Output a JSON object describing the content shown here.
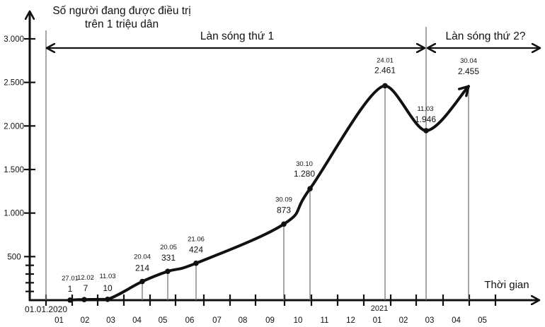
{
  "chart_data": {
    "type": "line",
    "title": "",
    "ylabel": "Số người đang được điều trị trên 1 triệu dân",
    "ylabel_lines": [
      "Số người đang được điều trị",
      "trên 1 triệu dân"
    ],
    "xlabel": "Thời gian",
    "ylim": [
      0,
      3000
    ],
    "yticks": [
      500,
      1000,
      1500,
      2000,
      2500,
      3000
    ],
    "ytick_labels": [
      "500",
      "1.000",
      "1.500",
      "2.000",
      "2.500",
      "3.000"
    ],
    "x_start_label": "01.01.2020",
    "x_year_marker": "2021",
    "x_month_labels": [
      "01",
      "02",
      "03",
      "04",
      "05",
      "06",
      "07",
      "08",
      "09",
      "10",
      "11",
      "12",
      "01",
      "02",
      "03",
      "04",
      "05"
    ],
    "grid": false,
    "legend": null,
    "points": [
      {
        "date": "27.01",
        "value": 1,
        "label": "1"
      },
      {
        "date": "12.02",
        "value": 7,
        "label": "7"
      },
      {
        "date": "11.03",
        "value": 10,
        "label": "10"
      },
      {
        "date": "20.04",
        "value": 214,
        "label": "214"
      },
      {
        "date": "20.05",
        "value": 331,
        "label": "331"
      },
      {
        "date": "21.06",
        "value": 424,
        "label": "424"
      },
      {
        "date": "30.09",
        "value": 873,
        "label": "873"
      },
      {
        "date": "30.10",
        "value": 1280,
        "label": "1.280"
      },
      {
        "date": "24.01",
        "value": 2461,
        "label": "2.461"
      },
      {
        "date": "11.03",
        "value": 1946,
        "label": "1.946"
      },
      {
        "date": "30.04",
        "value": 2455,
        "label": "2.455"
      }
    ],
    "annotations": [
      {
        "text": "Làn sóng thứ 1",
        "span": [
          "01.01.2020",
          "11.03.2021"
        ]
      },
      {
        "text": "Làn sóng thứ 2?",
        "span": [
          "11.03.2021",
          "ongoing"
        ]
      }
    ]
  }
}
